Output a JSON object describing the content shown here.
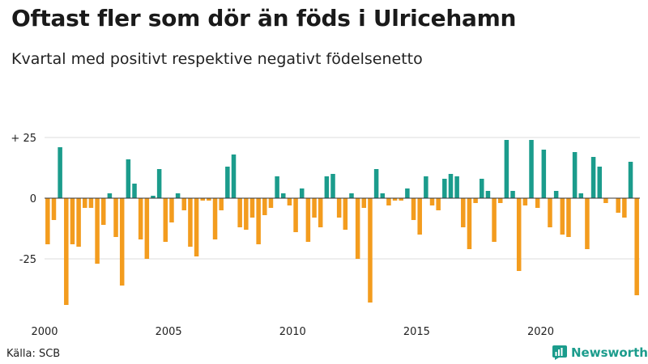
{
  "header": {
    "title": "Oftast fler som dör än föds i Ulricehamn",
    "subtitle": "Kvartal med positivt respektive negativt födelsenetto"
  },
  "footer": {
    "source": "Källa: SCB",
    "brand": "Newsworthy"
  },
  "colors": {
    "positive": "#1b9c8c",
    "negative": "#f39c1e",
    "grid": "#dddddd",
    "zero": "#333333"
  },
  "chart_data": {
    "type": "bar",
    "title": "Oftast fler som dör än föds i Ulricehamn",
    "subtitle": "Kvartal med positivt respektive negativt födelsenetto",
    "xlabel": "",
    "ylabel": "",
    "ylim": [
      -47,
      27
    ],
    "y_ticks": [
      {
        "value": 25,
        "label": "+ 25"
      },
      {
        "value": 0,
        "label": "0"
      },
      {
        "value": -25,
        "label": "-25"
      }
    ],
    "x_ticks": [
      {
        "year": 2000,
        "label": "2000"
      },
      {
        "year": 2005,
        "label": "2005"
      },
      {
        "year": 2010,
        "label": "2010"
      },
      {
        "year": 2015,
        "label": "2015"
      },
      {
        "year": 2020,
        "label": "2020"
      }
    ],
    "start_year": 2000,
    "categories": [
      "2000 K1",
      "2000 K2",
      "2000 K3",
      "2000 K4",
      "2001 K1",
      "2001 K2",
      "2001 K3",
      "2001 K4",
      "2002 K1",
      "2002 K2",
      "2002 K3",
      "2002 K4",
      "2003 K1",
      "2003 K2",
      "2003 K3",
      "2003 K4",
      "2004 K1",
      "2004 K2",
      "2004 K3",
      "2004 K4",
      "2005 K1",
      "2005 K2",
      "2005 K3",
      "2005 K4",
      "2006 K1",
      "2006 K2",
      "2006 K3",
      "2006 K4",
      "2007 K1",
      "2007 K2",
      "2007 K3",
      "2007 K4",
      "2008 K1",
      "2008 K2",
      "2008 K3",
      "2008 K4",
      "2009 K1",
      "2009 K2",
      "2009 K3",
      "2009 K4",
      "2010 K1",
      "2010 K2",
      "2010 K3",
      "2010 K4",
      "2011 K1",
      "2011 K2",
      "2011 K3",
      "2011 K4",
      "2012 K1",
      "2012 K2",
      "2012 K3",
      "2012 K4",
      "2013 K1",
      "2013 K2",
      "2013 K3",
      "2013 K4",
      "2014 K1",
      "2014 K2",
      "2014 K3",
      "2014 K4",
      "2015 K1",
      "2015 K2",
      "2015 K3",
      "2015 K4",
      "2016 K1",
      "2016 K2",
      "2016 K3",
      "2016 K4",
      "2017 K1",
      "2017 K2",
      "2017 K3",
      "2017 K4",
      "2018 K1",
      "2018 K2",
      "2018 K3",
      "2018 K4",
      "2019 K1",
      "2019 K2",
      "2019 K3",
      "2019 K4",
      "2020 K1",
      "2020 K2",
      "2020 K3",
      "2020 K4",
      "2021 K1",
      "2021 K2",
      "2021 K3",
      "2021 K4",
      "2022 K1",
      "2022 K2",
      "2022 K3",
      "2022 K4",
      "2023 K1",
      "2023 K2",
      "2023 K3",
      "2023 K4"
    ],
    "values": [
      -19,
      -9,
      21,
      -44,
      -19,
      -20,
      -4,
      -4,
      -27,
      -11,
      2,
      -16,
      -36,
      16,
      6,
      -17,
      -25,
      1,
      12,
      -18,
      -10,
      2,
      -5,
      -20,
      -24,
      -1,
      -1,
      -17,
      -5,
      13,
      18,
      -12,
      -13,
      -8,
      -19,
      -7,
      -4,
      9,
      2,
      -3,
      -14,
      4,
      -18,
      -8,
      -12,
      9,
      10,
      -8,
      -13,
      2,
      -25,
      -4,
      -43,
      12,
      2,
      -3,
      -1,
      -1,
      4,
      -9,
      -15,
      9,
      -3,
      -5,
      8,
      10,
      9,
      -12,
      -21,
      -2,
      8,
      3,
      -18,
      -2,
      24,
      3,
      -30,
      -3,
      24,
      -4,
      20,
      -12,
      3,
      -15,
      -16,
      19,
      2,
      -21,
      17,
      13,
      -2,
      0,
      -6,
      -8,
      15,
      -40
    ]
  }
}
